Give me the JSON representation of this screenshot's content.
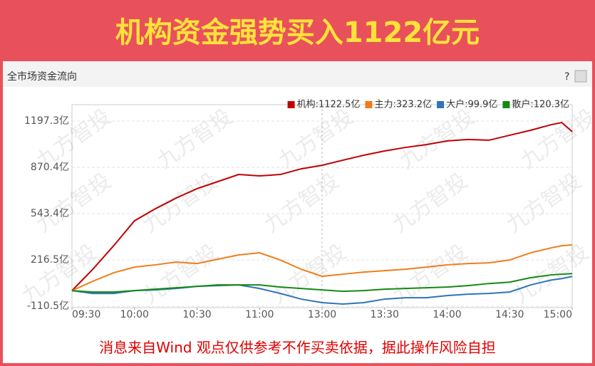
{
  "banner": {
    "title": "机构资金强势买入1122亿元"
  },
  "panel": {
    "title": "全市场资金流向",
    "help": "?"
  },
  "watermark": "九方智投",
  "footer": "消息来自Wind  观点仅供参考不作买卖依据，据此操作风险自担",
  "chart_data": {
    "type": "line",
    "x": [
      0,
      10,
      20,
      30,
      40,
      50,
      60,
      70,
      80,
      90,
      100,
      110,
      120,
      130,
      140,
      150,
      160,
      170,
      180,
      190,
      200,
      210,
      220,
      230,
      235,
      240
    ],
    "xlim": [
      0,
      240
    ],
    "xticks": [
      {
        "value": 0,
        "label": "09:30"
      },
      {
        "value": 30,
        "label": "10:00"
      },
      {
        "value": 60,
        "label": "10:30"
      },
      {
        "value": 90,
        "label": "11:00"
      },
      {
        "value": 120,
        "label": "13:00"
      },
      {
        "value": 150,
        "label": "13:30"
      },
      {
        "value": 180,
        "label": "14:00"
      },
      {
        "value": 210,
        "label": "14:30"
      },
      {
        "value": 240,
        "label": "15:00"
      }
    ],
    "ylim": [
      -120,
      1313
    ],
    "yticks": [
      {
        "value": -110.5,
        "label": "-110.5亿"
      },
      {
        "value": 216.5,
        "label": "216.5亿"
      },
      {
        "value": 543.4,
        "label": "543.4亿"
      },
      {
        "value": 870.4,
        "label": "870.4亿"
      },
      {
        "value": 1197.3,
        "label": "1197.3亿"
      }
    ],
    "grid": true,
    "legend": "top-right",
    "series": [
      {
        "name": "机构:1122.5亿",
        "color": "#c00000",
        "values": [
          0,
          151,
          317,
          493,
          578,
          654,
          720,
          770,
          820,
          810,
          820,
          860,
          885,
          921,
          956,
          986,
          1011,
          1031,
          1057,
          1067,
          1062,
          1097,
          1132,
          1172,
          1187,
          1122.5
        ]
      },
      {
        "name": "主力:323.2亿",
        "color": "#f07d1a",
        "values": [
          0,
          66,
          126,
          166,
          182,
          202,
          191,
          222,
          252,
          267,
          216,
          151,
          101,
          116,
          131,
          141,
          151,
          166,
          182,
          191,
          196,
          216,
          267,
          302,
          317,
          323.2
        ]
      },
      {
        "name": "大户:99.9亿",
        "color": "#2e75b6",
        "values": [
          0,
          -20,
          -20,
          0,
          5,
          15,
          30,
          35,
          40,
          15,
          -20,
          -60,
          -85,
          -95,
          -85,
          -60,
          -50,
          -50,
          -35,
          -25,
          -20,
          -10,
          40,
          75,
          85,
          99.9
        ]
      },
      {
        "name": "散户:120.3亿",
        "color": "#138a13",
        "values": [
          0,
          -10,
          -10,
          0,
          10,
          20,
          30,
          40,
          40,
          40,
          25,
          15,
          5,
          -5,
          0,
          10,
          15,
          20,
          25,
          35,
          50,
          60,
          91,
          111,
          116,
          120.3
        ]
      }
    ]
  }
}
